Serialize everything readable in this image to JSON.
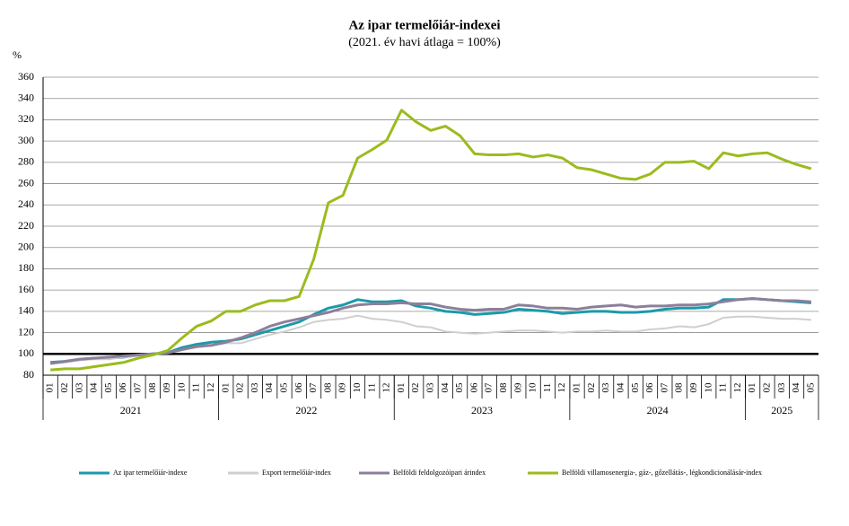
{
  "chart_data": {
    "type": "line",
    "title": "Az ipar termelőiár-indexei",
    "subtitle": "(2021. év havi átlaga = 100%)",
    "y_label": "%",
    "categories": [
      "01",
      "02",
      "03",
      "04",
      "05",
      "06",
      "07",
      "08",
      "09",
      "10",
      "11",
      "12",
      "01",
      "02",
      "03",
      "04",
      "05",
      "06",
      "07",
      "08",
      "09",
      "10",
      "11",
      "12",
      "01",
      "02",
      "03",
      "04",
      "05",
      "06",
      "07",
      "08",
      "09",
      "10",
      "11",
      "12",
      "01",
      "02",
      "03",
      "04",
      "05",
      "06",
      "07",
      "08",
      "09",
      "10",
      "11",
      "12",
      "01",
      "02",
      "03",
      "04",
      "05"
    ],
    "year_labels": [
      "2021",
      "2022",
      "2023",
      "2024",
      "2025"
    ],
    "ylim": [
      80,
      360
    ],
    "yticks": [
      80,
      100,
      120,
      140,
      160,
      180,
      200,
      220,
      240,
      260,
      280,
      300,
      320,
      340,
      360
    ],
    "grid": true,
    "reference_line": 100,
    "series": [
      {
        "name": "Az ipar termelőiár-indexe",
        "color": "#1b9aaa",
        "values": [
          92,
          93,
          95,
          96,
          96,
          97,
          99,
          100,
          101,
          106,
          109,
          111,
          112,
          114,
          118,
          122,
          126,
          130,
          137,
          143,
          146,
          151,
          149,
          149,
          150,
          145,
          143,
          140,
          139,
          137,
          138,
          139,
          142,
          141,
          140,
          138,
          139,
          140,
          140,
          139,
          139,
          140,
          142,
          143,
          143,
          144,
          151,
          151,
          152,
          151,
          150,
          149,
          148
        ]
      },
      {
        "name": "Export termelőiár-index",
        "color": "#cfcfcf",
        "values": [
          91,
          92,
          94,
          95,
          95,
          97,
          98,
          100,
          101,
          104,
          106,
          108,
          110,
          110,
          114,
          118,
          121,
          125,
          130,
          132,
          133,
          136,
          133,
          132,
          130,
          126,
          125,
          121,
          120,
          119,
          120,
          121,
          122,
          122,
          121,
          120,
          121,
          121,
          122,
          121,
          121,
          123,
          124,
          126,
          125,
          128,
          134,
          135,
          135,
          134,
          133,
          133,
          132
        ]
      },
      {
        "name": "Belföldi feldolgozóipari árindex",
        "color": "#8d7f9a",
        "values": [
          91,
          93,
          95,
          96,
          97,
          98,
          99,
          100,
          101,
          104,
          107,
          108,
          111,
          115,
          120,
          126,
          130,
          133,
          136,
          139,
          143,
          146,
          147,
          147,
          148,
          147,
          147,
          144,
          142,
          141,
          142,
          142,
          146,
          145,
          143,
          143,
          142,
          144,
          145,
          146,
          144,
          145,
          145,
          146,
          146,
          147,
          149,
          151,
          152,
          151,
          150,
          150,
          149
        ]
      },
      {
        "name": "Belföldi villamosenergia-, gáz-, gőzellátás-, légkondicionálásár-index",
        "color": "#9bbb1e",
        "values": [
          85,
          86,
          86,
          88,
          90,
          92,
          96,
          99,
          103,
          115,
          126,
          131,
          140,
          140,
          146,
          150,
          150,
          154,
          189,
          242,
          249,
          284,
          292,
          301,
          329,
          318,
          310,
          314,
          305,
          288,
          287,
          287,
          288,
          285,
          287,
          284,
          275,
          273,
          269,
          265,
          264,
          269,
          280,
          280,
          281,
          274,
          289,
          286,
          288,
          289,
          283,
          278,
          274
        ]
      }
    ]
  }
}
